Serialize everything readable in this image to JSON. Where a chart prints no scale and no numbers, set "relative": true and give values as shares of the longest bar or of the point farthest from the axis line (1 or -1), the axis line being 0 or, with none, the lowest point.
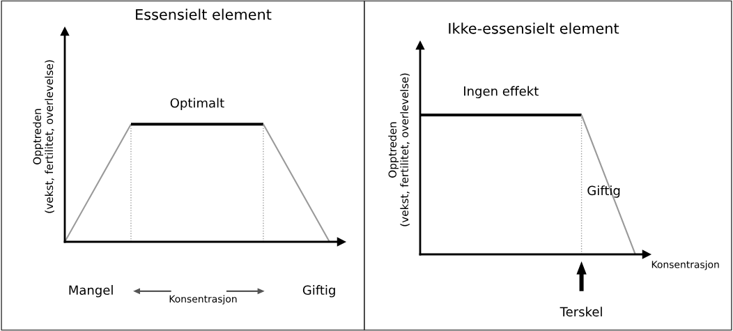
{
  "chart_data": [
    {
      "type": "line",
      "title": "Essensielt element",
      "xlabel": "Konsentrasjon",
      "ylabel": "Opptreden\n(vekst, fertilitet, overlevelse)",
      "relative": true,
      "tick_labels": false,
      "categories": [
        null,
        null,
        null,
        null,
        null
      ],
      "series": [
        {
          "color": "#999999",
          "values": [
            0,
            1,
            null,
            null,
            null
          ]
        },
        {
          "color": "#000000",
          "values": [
            null,
            1,
            1,
            1,
            null
          ]
        },
        {
          "color": "#999999",
          "values": [
            null,
            null,
            null,
            1,
            0
          ]
        }
      ],
      "annotations": [
        "Optimalt",
        "Mangel",
        "Giftig"
      ]
    },
    {
      "type": "line",
      "title": "Ikke-essensielt element",
      "xlabel": "Konsentrasjon",
      "ylabel": "Opptreden\n(vekst, fertilitet, overlevelse)",
      "relative": true,
      "tick_labels": false,
      "categories": [
        null,
        null,
        null,
        null,
        null
      ],
      "series": [
        {
          "color": "#000000",
          "values": [
            1,
            1,
            1,
            1,
            null
          ]
        },
        {
          "color": "#999999",
          "values": [
            null,
            null,
            null,
            1,
            0
          ]
        }
      ],
      "annotations": [
        "Ingen effekt",
        "Giftig",
        "Terskel"
      ]
    }
  ]
}
